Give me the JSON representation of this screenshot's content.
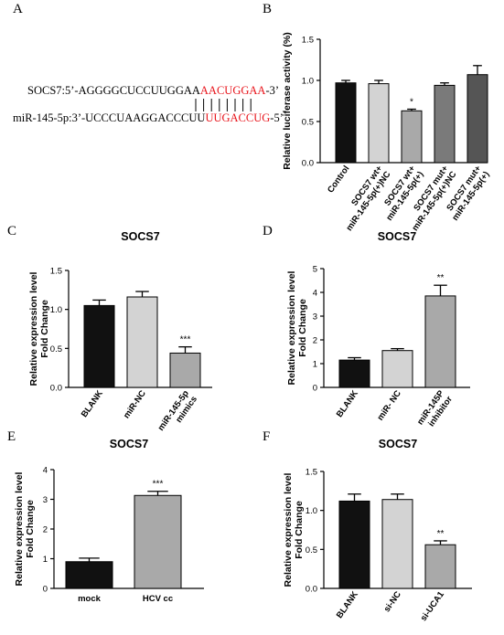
{
  "panels": {
    "a": "A",
    "b": "B",
    "c": "C",
    "d": "D",
    "e": "E",
    "f": "F"
  },
  "sequence": {
    "top_prefix": "SOCS7:5’-AGGGGCUCCUUGGAA",
    "top_highlight": "AACUGGAA",
    "top_suffix": "-3’",
    "bottom_prefix": "miR-145-5p:3’-UCCCUAAGGACCCUU",
    "bottom_highlight": "UUGACCUG",
    "bottom_suffix": "-5’",
    "pair_lines": 8
  },
  "colors": {
    "black": "#111111",
    "light_gray": "#d3d3d3",
    "mid_gray": "#a9a9a9",
    "gray": "#7a7a7a",
    "dark_gray": "#555555",
    "highlight_red": "#e8141b"
  },
  "chart_data": [
    {
      "id": "B",
      "type": "bar",
      "title": "",
      "ylabel": "Relative luciferase activity (%)",
      "ylim": [
        0,
        1.5
      ],
      "yticks": [
        "0.0",
        "0.5",
        "1.0",
        "1.5"
      ],
      "categories": [
        [
          "Control"
        ],
        [
          "SOCS7 wt+",
          "miR-145-5p(+)NC"
        ],
        [
          "SOCS7 wt+",
          "miR-145-5p(+)"
        ],
        [
          "SOCS7 mut+",
          "miR-145-5p(+)NC"
        ],
        [
          "SOCS7 mut+",
          "miR-145-5p(+)"
        ]
      ],
      "values": [
        0.97,
        0.96,
        0.63,
        0.94,
        1.07
      ],
      "errors": [
        0.03,
        0.04,
        0.02,
        0.03,
        0.11
      ],
      "bar_colors": [
        "#111111",
        "#d3d3d3",
        "#a9a9a9",
        "#7a7a7a",
        "#555555"
      ],
      "annotations": [
        "",
        "",
        "*",
        "",
        ""
      ],
      "label_style": "rotated"
    },
    {
      "id": "C",
      "type": "bar",
      "title": "SOCS7",
      "ylabel": [
        "Relative expression level",
        "Fold Change"
      ],
      "ylim": [
        0,
        1.5
      ],
      "yticks": [
        "0.0",
        "0.5",
        "1.0",
        "1.5"
      ],
      "categories": [
        [
          "BLANK"
        ],
        [
          "miR-NC"
        ],
        [
          "miR-145-5p",
          "mimics"
        ]
      ],
      "values": [
        1.05,
        1.16,
        0.44
      ],
      "errors": [
        0.07,
        0.07,
        0.08
      ],
      "bar_colors": [
        "#111111",
        "#d3d3d3",
        "#a9a9a9"
      ],
      "annotations": [
        "",
        "",
        "***"
      ],
      "label_style": "rotated"
    },
    {
      "id": "D",
      "type": "bar",
      "title": "SOCS7",
      "ylabel": [
        "Relative expression level",
        "Fold Change"
      ],
      "ylim": [
        0,
        5
      ],
      "yticks": [
        "0",
        "1",
        "2",
        "3",
        "4",
        "5"
      ],
      "categories": [
        [
          "BLANK"
        ],
        [
          "miR- NC"
        ],
        [
          "miR-145P",
          "inhibitor"
        ]
      ],
      "values": [
        1.15,
        1.55,
        3.85
      ],
      "errors": [
        0.1,
        0.08,
        0.45
      ],
      "bar_colors": [
        "#111111",
        "#d3d3d3",
        "#a9a9a9"
      ],
      "annotations": [
        "",
        "",
        "**"
      ],
      "label_style": "rotated"
    },
    {
      "id": "E",
      "type": "bar",
      "title": "SOCS7",
      "ylabel": [
        "Relative expression level",
        "Fold Change"
      ],
      "ylim": [
        0,
        4
      ],
      "yticks": [
        "0",
        "1",
        "2",
        "3",
        "4"
      ],
      "categories": [
        [
          "mock"
        ],
        [
          "HCV cc"
        ]
      ],
      "values": [
        0.9,
        3.13
      ],
      "errors": [
        0.12,
        0.14
      ],
      "bar_colors": [
        "#111111",
        "#a9a9a9"
      ],
      "annotations": [
        "",
        "***"
      ],
      "label_style": "horizontal"
    },
    {
      "id": "F",
      "type": "bar",
      "title": "SOCS7",
      "ylabel": [
        "Relative expression level",
        "Fold Change"
      ],
      "ylim": [
        0,
        1.5
      ],
      "yticks": [
        "0.0",
        "0.5",
        "1.0",
        "1.5"
      ],
      "categories": [
        [
          "BLANK"
        ],
        [
          "si-NC"
        ],
        [
          "si-UCA1"
        ]
      ],
      "values": [
        1.12,
        1.14,
        0.56
      ],
      "errors": [
        0.09,
        0.07,
        0.05
      ],
      "bar_colors": [
        "#111111",
        "#d3d3d3",
        "#a9a9a9"
      ],
      "annotations": [
        "",
        "",
        "**"
      ],
      "label_style": "rotated"
    }
  ]
}
